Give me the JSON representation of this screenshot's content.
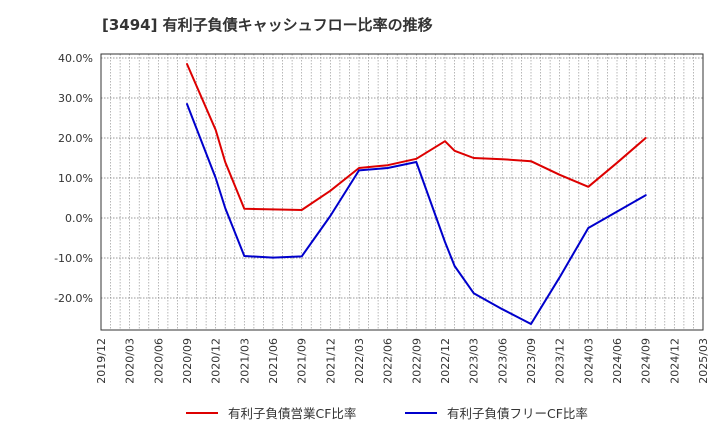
{
  "chart_data": {
    "type": "line",
    "title": "[3494]  有利子負債キャッシュフロー比率の推移",
    "xlabel": "",
    "ylabel": "",
    "x_ticks": [
      "2019/12",
      "2020/03",
      "2020/06",
      "2020/09",
      "2020/12",
      "2021/03",
      "2021/06",
      "2021/09",
      "2021/12",
      "2022/03",
      "2022/06",
      "2022/09",
      "2022/12",
      "2023/03",
      "2023/06",
      "2023/09",
      "2023/12",
      "2024/03",
      "2024/06",
      "2024/09",
      "2024/12",
      "2025/03"
    ],
    "y_ticks": [
      "40.0%",
      "30.0%",
      "20.0%",
      "10.0%",
      "0.0%",
      "-10.0%",
      "-20.0%"
    ],
    "y_tick_values": [
      40,
      30,
      20,
      10,
      0,
      -10,
      -20
    ],
    "ylim": [
      -28,
      41
    ],
    "grid": true,
    "legend_position": "bottom",
    "series": [
      {
        "name": "有利子負債営業CF比率",
        "color": "#dd0000",
        "points": [
          {
            "x": "2020/09",
            "y": 38.5
          },
          {
            "x": "2020/12",
            "y": 22.0
          },
          {
            "x": "2021/01",
            "y": 14.0
          },
          {
            "x": "2021/03",
            "y": 2.3
          },
          {
            "x": "2021/09",
            "y": 2.0
          },
          {
            "x": "2021/12",
            "y": 6.8
          },
          {
            "x": "2022/03",
            "y": 12.5
          },
          {
            "x": "2022/06",
            "y": 13.2
          },
          {
            "x": "2022/09",
            "y": 14.8
          },
          {
            "x": "2022/12",
            "y": 19.2
          },
          {
            "x": "2023/01",
            "y": 16.8
          },
          {
            "x": "2023/03",
            "y": 15.0
          },
          {
            "x": "2023/06",
            "y": 14.7
          },
          {
            "x": "2023/09",
            "y": 14.2
          },
          {
            "x": "2023/12",
            "y": 10.8
          },
          {
            "x": "2024/03",
            "y": 7.8
          },
          {
            "x": "2024/06",
            "y": 13.8
          },
          {
            "x": "2024/09",
            "y": 20.0
          }
        ]
      },
      {
        "name": "有利子負債フリーCF比率",
        "color": "#0000cc",
        "points": [
          {
            "x": "2020/09",
            "y": 28.5
          },
          {
            "x": "2020/12",
            "y": 10.0
          },
          {
            "x": "2021/01",
            "y": 2.5
          },
          {
            "x": "2021/03",
            "y": -9.5
          },
          {
            "x": "2021/06",
            "y": -9.9
          },
          {
            "x": "2021/09",
            "y": -9.6
          },
          {
            "x": "2021/12",
            "y": 0.5
          },
          {
            "x": "2022/03",
            "y": 11.9
          },
          {
            "x": "2022/06",
            "y": 12.5
          },
          {
            "x": "2022/09",
            "y": 14.0
          },
          {
            "x": "2022/12",
            "y": -6.0
          },
          {
            "x": "2023/01",
            "y": -12.0
          },
          {
            "x": "2023/03",
            "y": -18.8
          },
          {
            "x": "2023/06",
            "y": -22.8
          },
          {
            "x": "2023/09",
            "y": -26.5
          },
          {
            "x": "2023/12",
            "y": -14.8
          },
          {
            "x": "2024/03",
            "y": -2.5
          },
          {
            "x": "2024/06",
            "y": 1.6
          },
          {
            "x": "2024/09",
            "y": 5.7
          }
        ]
      }
    ]
  }
}
